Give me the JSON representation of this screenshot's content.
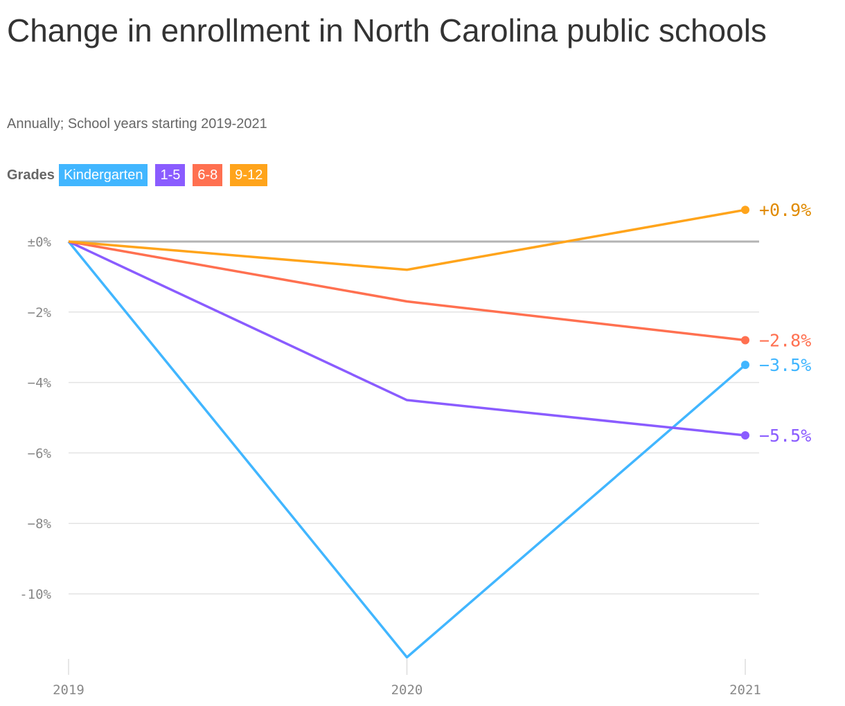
{
  "title": "Change in enrollment in North Carolina public schools",
  "subtitle": "Annually; School years starting 2019-2021",
  "legend": {
    "label": "Grades"
  },
  "chart_data": {
    "type": "line",
    "x": [
      "2019",
      "2020",
      "2021"
    ],
    "ylim": [
      -11.8,
      1
    ],
    "yticks": [
      0,
      -2,
      -4,
      -6,
      -8,
      -10
    ],
    "ytick_labels": [
      "±0%",
      "−2%",
      "−4%",
      "−6%",
      "−8%",
      "-10%"
    ],
    "grid": true,
    "legend_placement": "top-left",
    "series": [
      {
        "name": "Kindergarten",
        "values": [
          0,
          -11.8,
          -3.5
        ],
        "color": "#41b6ff",
        "end_label": "−3.5%",
        "label_color": "#41b6ff"
      },
      {
        "name": "1-5",
        "values": [
          0,
          -4.5,
          -5.5
        ],
        "color": "#8a5cff",
        "end_label": "−5.5%",
        "label_color": "#8a5cff"
      },
      {
        "name": "6-8",
        "values": [
          0,
          -1.7,
          -2.8
        ],
        "color": "#ff7050",
        "end_label": "−2.8%",
        "label_color": "#ff7050"
      },
      {
        "name": "9-12",
        "values": [
          0,
          -0.8,
          0.9
        ],
        "color": "#ffa41b",
        "end_label": "+0.9%",
        "label_color": "#e08a00"
      }
    ]
  }
}
